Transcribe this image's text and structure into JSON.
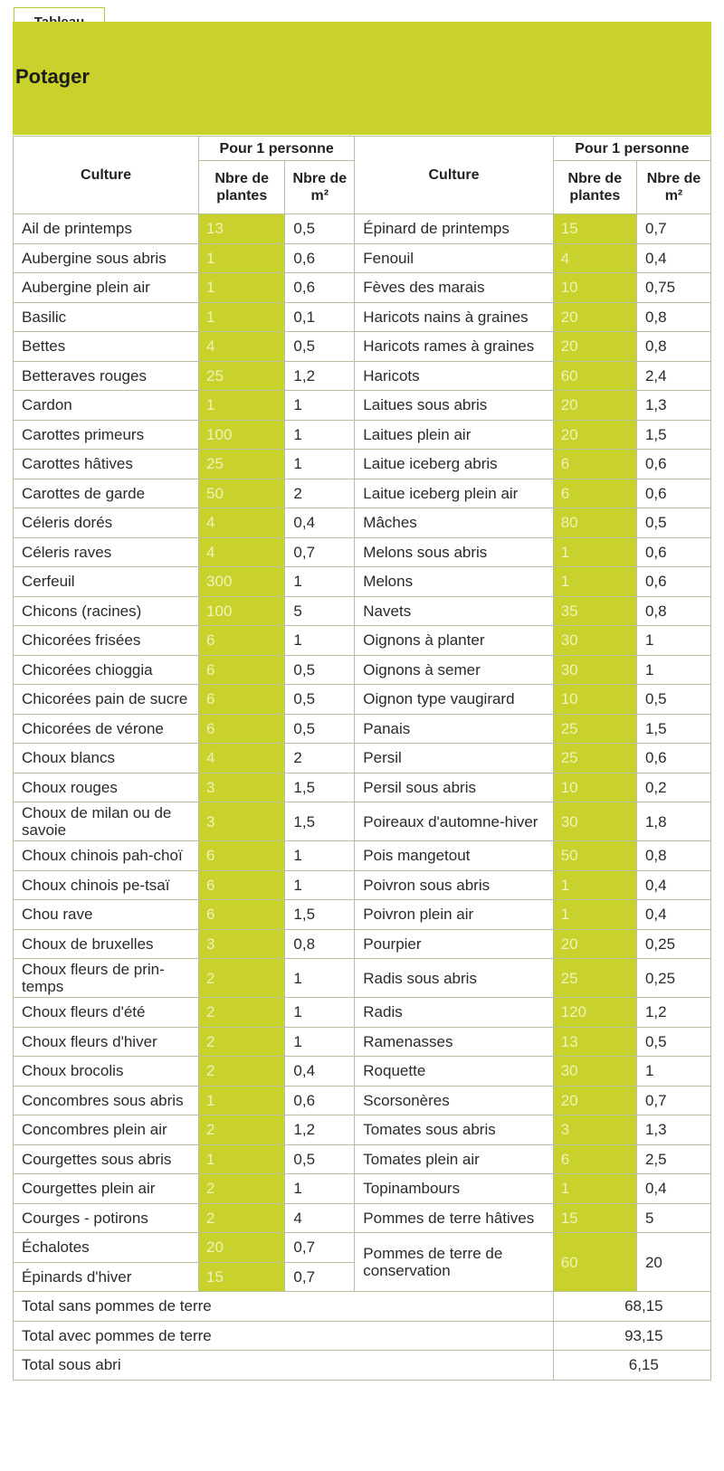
{
  "tab": {
    "label": "Tableau"
  },
  "title": "Potager",
  "headers": {
    "culture": "Culture",
    "group": "Pour 1 personne",
    "plants": "Nbre de plantes",
    "area": "Nbre de m²"
  },
  "rows_left": [
    {
      "culture": "Ail de printemps",
      "plants": "13",
      "area": "0,5"
    },
    {
      "culture": "Aubergine sous abris",
      "plants": "1",
      "area": "0,6"
    },
    {
      "culture": "Aubergine plein air",
      "plants": "1",
      "area": "0,6"
    },
    {
      "culture": "Basilic",
      "plants": "1",
      "area": "0,1"
    },
    {
      "culture": "Bettes",
      "plants": "4",
      "area": "0,5"
    },
    {
      "culture": "Betteraves rouges",
      "plants": "25",
      "area": "1,2"
    },
    {
      "culture": "Cardon",
      "plants": "1",
      "area": "1"
    },
    {
      "culture": "Carottes primeurs",
      "plants": "100",
      "area": "1"
    },
    {
      "culture": "Carottes hâtives",
      "plants": "25",
      "area": "1"
    },
    {
      "culture": "Carottes de garde",
      "plants": "50",
      "area": "2"
    },
    {
      "culture": "Céleris dorés",
      "plants": "4",
      "area": "0,4"
    },
    {
      "culture": "Céleris raves",
      "plants": "4",
      "area": "0,7"
    },
    {
      "culture": "Cerfeuil",
      "plants": "300",
      "area": "1"
    },
    {
      "culture": "Chicons (racines)",
      "plants": "100",
      "area": "5"
    },
    {
      "culture": "Chicorées frisées",
      "plants": "6",
      "area": "1"
    },
    {
      "culture": "Chicorées chioggia",
      "plants": "6",
      "area": "0,5"
    },
    {
      "culture": "Chicorées pain de sucre",
      "plants": "6",
      "area": "0,5"
    },
    {
      "culture": "Chicorées de vérone",
      "plants": "6",
      "area": "0,5"
    },
    {
      "culture": "Choux blancs",
      "plants": "4",
      "area": "2"
    },
    {
      "culture": "Choux rouges",
      "plants": "3",
      "area": "1,5"
    },
    {
      "culture": "Choux de milan ou de savoie",
      "plants": "3",
      "area": "1,5"
    },
    {
      "culture": "Choux chinois pah-choï",
      "plants": "6",
      "area": "1"
    },
    {
      "culture": "Choux chinois pe-tsaï",
      "plants": "6",
      "area": "1"
    },
    {
      "culture": "Chou rave",
      "plants": "6",
      "area": "1,5"
    },
    {
      "culture": "Choux de bruxelles",
      "plants": "3",
      "area": "0,8"
    },
    {
      "culture": "Choux fleurs de prin-temps",
      "plants": "2",
      "area": "1"
    },
    {
      "culture": "Choux fleurs d'été",
      "plants": "2",
      "area": "1"
    },
    {
      "culture": "Choux fleurs d'hiver",
      "plants": "2",
      "area": "1"
    },
    {
      "culture": "Choux brocolis",
      "plants": "2",
      "area": "0,4"
    },
    {
      "culture": "Concombres sous abris",
      "plants": "1",
      "area": "0,6"
    },
    {
      "culture": "Concombres plein air",
      "plants": "2",
      "area": "1,2"
    },
    {
      "culture": "Courgettes sous abris",
      "plants": "1",
      "area": "0,5"
    },
    {
      "culture": "Courgettes plein air",
      "plants": "2",
      "area": "1"
    },
    {
      "culture": "Courges - potirons",
      "plants": "2",
      "area": "4"
    },
    {
      "culture": "Échalotes",
      "plants": "20",
      "area": "0,7"
    },
    {
      "culture": "Épinards d'hiver",
      "plants": "15",
      "area": "0,7"
    }
  ],
  "rows_right": [
    {
      "culture": "Épinard de printemps",
      "plants": "15",
      "area": "0,7"
    },
    {
      "culture": "Fenouil",
      "plants": "4",
      "area": "0,4"
    },
    {
      "culture": "Fèves des marais",
      "plants": "10",
      "area": "0,75"
    },
    {
      "culture": "Haricots nains à graines",
      "plants": "20",
      "area": "0,8"
    },
    {
      "culture": "Haricots rames à graines",
      "plants": "20",
      "area": "0,8"
    },
    {
      "culture": "Haricots",
      "plants": "60",
      "area": "2,4"
    },
    {
      "culture": "Laitues sous abris",
      "plants": "20",
      "area": "1,3"
    },
    {
      "culture": "Laitues plein air",
      "plants": "20",
      "area": "1,5"
    },
    {
      "culture": "Laitue iceberg abris",
      "plants": "6",
      "area": "0,6"
    },
    {
      "culture": "Laitue iceberg plein air",
      "plants": "6",
      "area": "0,6"
    },
    {
      "culture": "Mâches",
      "plants": "80",
      "area": "0,5"
    },
    {
      "culture": "Melons sous abris",
      "plants": "1",
      "area": "0,6"
    },
    {
      "culture": "Melons",
      "plants": "1",
      "area": "0,6"
    },
    {
      "culture": "Navets",
      "plants": "35",
      "area": "0,8"
    },
    {
      "culture": "Oignons à planter",
      "plants": "30",
      "area": "1"
    },
    {
      "culture": "Oignons à semer",
      "plants": "30",
      "area": "1"
    },
    {
      "culture": "Oignon type vaugirard",
      "plants": "10",
      "area": "0,5"
    },
    {
      "culture": "Panais",
      "plants": "25",
      "area": "1,5"
    },
    {
      "culture": "Persil",
      "plants": "25",
      "area": "0,6"
    },
    {
      "culture": "Persil sous abris",
      "plants": "10",
      "area": "0,2"
    },
    {
      "culture": "Poireaux d'automne-hiver",
      "plants": "30",
      "area": "1,8"
    },
    {
      "culture": "Pois mangetout",
      "plants": "50",
      "area": "0,8"
    },
    {
      "culture": "Poivron sous abris",
      "plants": "1",
      "area": "0,4"
    },
    {
      "culture": "Poivron plein air",
      "plants": "1",
      "area": "0,4"
    },
    {
      "culture": "Pourpier",
      "plants": "20",
      "area": "0,25"
    },
    {
      "culture": "Radis sous abris",
      "plants": "25",
      "area": "0,25"
    },
    {
      "culture": "Radis",
      "plants": "120",
      "area": "1,2"
    },
    {
      "culture": "Ramenasses",
      "plants": "13",
      "area": "0,5"
    },
    {
      "culture": "Roquette",
      "plants": "30",
      "area": "1"
    },
    {
      "culture": "Scorsonères",
      "plants": "20",
      "area": "0,7"
    },
    {
      "culture": "Tomates sous abris",
      "plants": "3",
      "area": "1,3"
    },
    {
      "culture": "Tomates plein air",
      "plants": "6",
      "area": "2,5"
    },
    {
      "culture": "Topinambours",
      "plants": "1",
      "area": "0,4"
    },
    {
      "culture": "Pommes de terre hâtives",
      "plants": "15",
      "area": "5"
    },
    {
      "culture": "Pommes de terre de conservation",
      "plants": "60",
      "area": "20"
    }
  ],
  "totals": [
    {
      "label": "Total sans pommes de terre",
      "value": "68,15"
    },
    {
      "label": "Total avec pommes de terre",
      "value": "93,15"
    },
    {
      "label": "Total sous abri",
      "value": "6,15"
    }
  ]
}
